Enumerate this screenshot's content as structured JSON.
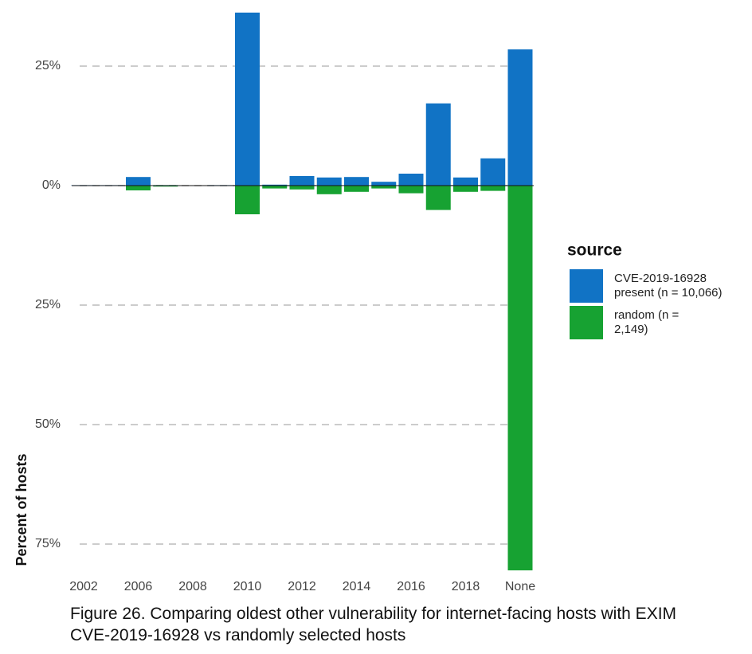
{
  "chart_data": {
    "type": "bar",
    "y_label": "Percent of hosts",
    "caption": "Figure 26. Comparing oldest other vulnerability for internet-facing hosts with EXIM CVE-2019-16928 vs randomly selected hosts",
    "legend_title": "source",
    "legend_position": "right",
    "categories": [
      "2002",
      null,
      "2006",
      null,
      "2008",
      null,
      "2010",
      null,
      "2012",
      null,
      "2014",
      null,
      "2016",
      null,
      "2018",
      null,
      "None"
    ],
    "series": [
      {
        "name": "CVE-2019-16928 present (n = 10,066)",
        "color": "#1173c5",
        "values": [
          0.1,
          0.1,
          1.8,
          0.1,
          0,
          0.1,
          36.2,
          0.2,
          2.0,
          1.7,
          1.8,
          0.8,
          2.5,
          17.2,
          1.7,
          5.7,
          28.5
        ]
      },
      {
        "name": "random (n = 2,149)",
        "color": "#17a232",
        "values": [
          0,
          0,
          -1.0,
          -0.2,
          0,
          0,
          -6.0,
          -0.6,
          -0.8,
          -1.8,
          -1.3,
          -0.6,
          -1.6,
          -5.1,
          -1.3,
          -1.1,
          -80.5
        ]
      }
    ],
    "ylim": [
      -80.5,
      36.5
    ],
    "yticks": [
      {
        "value": 25,
        "label": "25%"
      },
      {
        "value": 0,
        "label": "0%"
      },
      {
        "value": -25,
        "label": "25%"
      },
      {
        "value": -50,
        "label": "50%"
      },
      {
        "value": -75,
        "label": "75%"
      }
    ],
    "grid": true
  }
}
